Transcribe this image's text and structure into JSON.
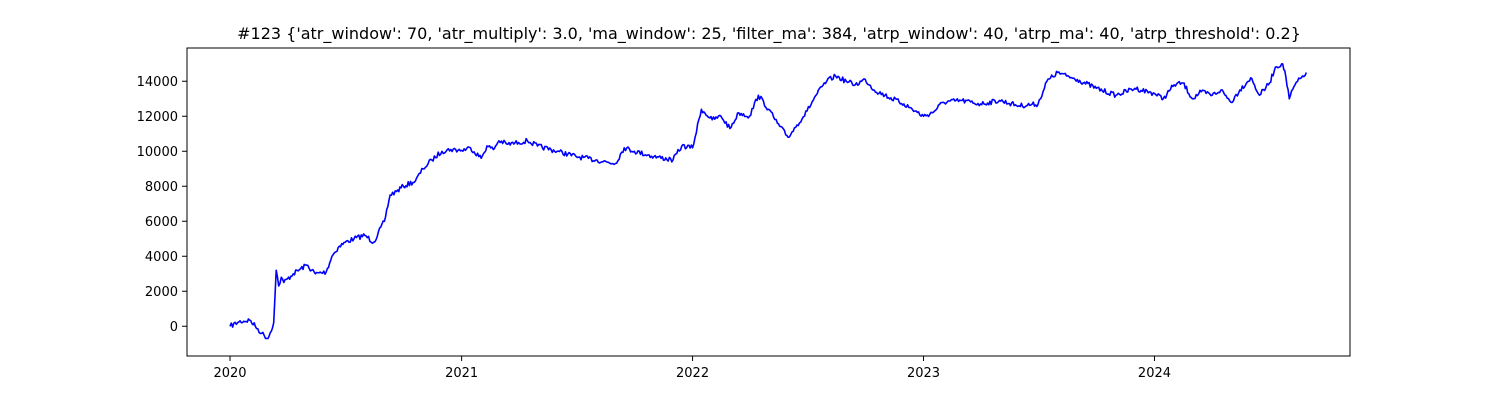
{
  "chart_data": {
    "type": "line",
    "title": "#123 {'atr_window': 70, 'atr_multiply': 3.0, 'ma_window': 25, 'filter_ma': 384, 'atrp_window': 40, 'atrp_ma': 40, 'atrp_threshold': 0.2}",
    "xlabel": "",
    "ylabel": "",
    "x_ticks": [
      "2020",
      "2021",
      "2022",
      "2023",
      "2024"
    ],
    "y_ticks": [
      0,
      2000,
      4000,
      6000,
      8000,
      10000,
      12000,
      14000
    ],
    "xlim": [
      "2019-10-25",
      "2024-11-05"
    ],
    "ylim": [
      -1700,
      15900
    ],
    "grid": false,
    "legend": "none",
    "line_color": "#0000ff",
    "series": [
      {
        "x": [
          "2020-01-01",
          "2020-01-15",
          "2020-02-01",
          "2020-02-10",
          "2020-02-20",
          "2020-03-01",
          "2020-03-10",
          "2020-03-14",
          "2020-03-18",
          "2020-03-22",
          "2020-03-26",
          "2020-04-10",
          "2020-05-01",
          "2020-05-15",
          "2020-06-01",
          "2020-06-10",
          "2020-06-20",
          "2020-07-01",
          "2020-07-15",
          "2020-08-01",
          "2020-08-15",
          "2020-09-01",
          "2020-09-10",
          "2020-09-20",
          "2020-10-01",
          "2020-10-20",
          "2020-11-01",
          "2020-11-15",
          "2020-12-01",
          "2020-12-15",
          "2021-01-01",
          "2021-01-15",
          "2021-02-01",
          "2021-02-10",
          "2021-02-20",
          "2021-03-01",
          "2021-03-15",
          "2021-04-01",
          "2021-04-15",
          "2021-05-01",
          "2021-06-01",
          "2021-07-01",
          "2021-08-01",
          "2021-09-01",
          "2021-09-15",
          "2021-10-01",
          "2021-11-01",
          "2021-12-01",
          "2021-12-15",
          "2022-01-01",
          "2022-01-15",
          "2022-02-01",
          "2022-02-15",
          "2022-03-01",
          "2022-03-15",
          "2022-04-01",
          "2022-04-15",
          "2022-05-01",
          "2022-05-15",
          "2022-06-01",
          "2022-06-15",
          "2022-07-01",
          "2022-07-15",
          "2022-08-01",
          "2022-08-15",
          "2022-09-01",
          "2022-09-15",
          "2022-10-01",
          "2022-10-15",
          "2022-11-01",
          "2022-12-01",
          "2023-01-01",
          "2023-01-15",
          "2023-02-01",
          "2023-03-01",
          "2023-04-01",
          "2023-05-01",
          "2023-06-01",
          "2023-07-01",
          "2023-07-15",
          "2023-08-01",
          "2023-08-15",
          "2023-09-01",
          "2023-10-01",
          "2023-11-01",
          "2023-12-01",
          "2024-01-01",
          "2024-01-15",
          "2024-02-01",
          "2024-02-15",
          "2024-03-01",
          "2024-03-15",
          "2024-04-01",
          "2024-04-15",
          "2024-05-01",
          "2024-05-15",
          "2024-06-01",
          "2024-06-15",
          "2024-07-01",
          "2024-07-10",
          "2024-07-20",
          "2024-07-25",
          "2024-08-01",
          "2024-08-10",
          "2024-08-20",
          "2024-08-28"
        ],
        "y": [
          0,
          250,
          350,
          0,
          -400,
          -700,
          200,
          3200,
          2300,
          2800,
          2500,
          3000,
          3500,
          3000,
          3100,
          4000,
          4500,
          4800,
          5000,
          5200,
          4800,
          6000,
          7500,
          7700,
          8000,
          8300,
          9000,
          9500,
          10000,
          10100,
          10050,
          10200,
          9600,
          10300,
          10100,
          10600,
          10400,
          10500,
          10600,
          10300,
          10000,
          9700,
          9500,
          9300,
          10200,
          10000,
          9700,
          9500,
          10300,
          10200,
          12400,
          11800,
          12000,
          11300,
          12200,
          12000,
          13200,
          12400,
          11600,
          10800,
          11500,
          12300,
          13200,
          14000,
          14300,
          14000,
          13800,
          14100,
          13500,
          13200,
          12700,
          12000,
          12200,
          12800,
          12900,
          12700,
          12900,
          12600,
          12700,
          14000,
          14500,
          14300,
          14100,
          13600,
          13200,
          13600,
          13300,
          13000,
          13800,
          13900,
          13000,
          13400,
          13200,
          13500,
          12800,
          13500,
          14200,
          13200,
          13900,
          14800,
          15000,
          14600,
          13000,
          13800,
          14200,
          14500
        ]
      }
    ]
  }
}
